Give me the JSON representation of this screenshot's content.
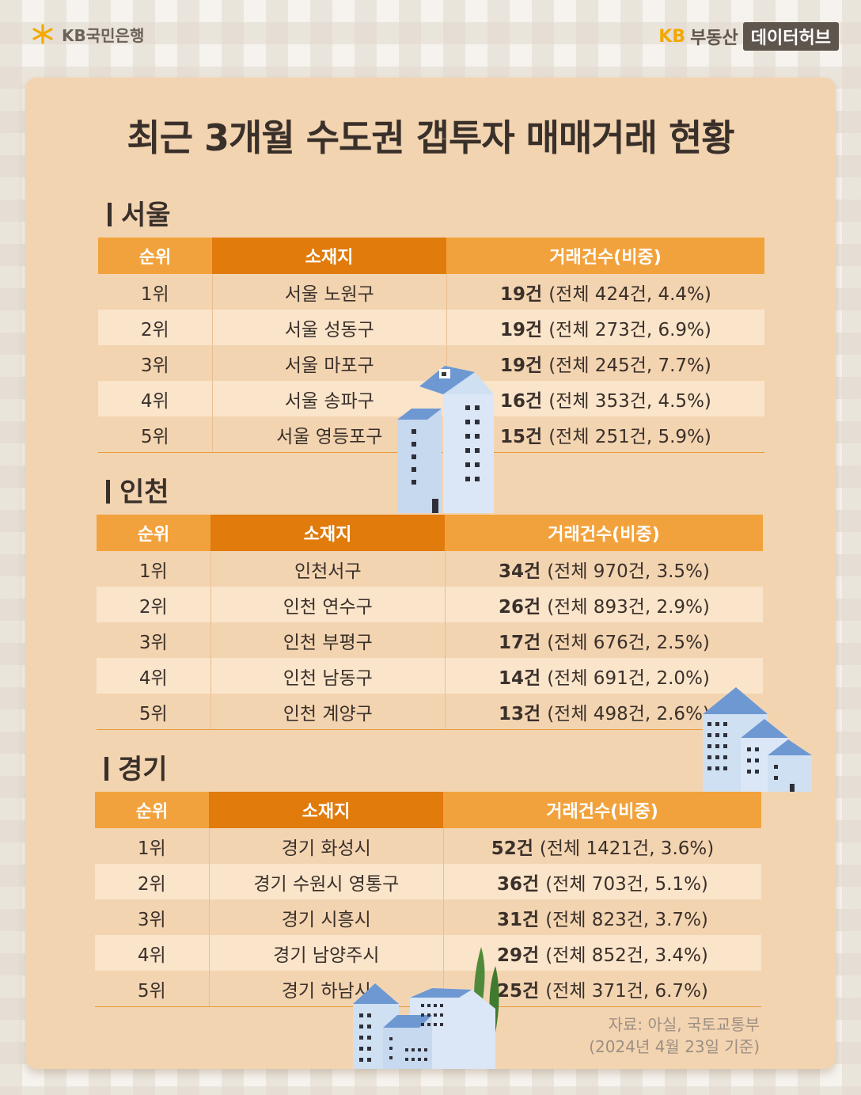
{
  "brand_left": {
    "text": "KB국민은행"
  },
  "brand_right": {
    "kb": "KB",
    "name": "부동산",
    "box": "데이터허브"
  },
  "title": "최근 3개월 수도권 갭투자 매매거래 현황",
  "headers": {
    "rank": "순위",
    "location": "소재지",
    "count": "거래건수(비중)"
  },
  "sections": [
    {
      "label": "서울",
      "rows": [
        {
          "rank": "1위",
          "location": "서울 노원구",
          "count": "19건",
          "detail": "(전체 424건, 4.4%)"
        },
        {
          "rank": "2위",
          "location": "서울 성동구",
          "count": "19건",
          "detail": "(전체 273건, 6.9%)"
        },
        {
          "rank": "3위",
          "location": "서울 마포구",
          "count": "19건",
          "detail": "(전체 245건, 7.7%)"
        },
        {
          "rank": "4위",
          "location": "서울 송파구",
          "count": "16건",
          "detail": "(전체 353건, 4.5%)"
        },
        {
          "rank": "5위",
          "location": "서울 영등포구",
          "count": "15건",
          "detail": "(전체 251건, 5.9%)"
        }
      ]
    },
    {
      "label": "인천",
      "rows": [
        {
          "rank": "1위",
          "location": "인천서구",
          "count": "34건",
          "detail": "(전체 970건, 3.5%)"
        },
        {
          "rank": "2위",
          "location": "인천 연수구",
          "count": "26건",
          "detail": "(전체 893건, 2.9%)"
        },
        {
          "rank": "3위",
          "location": "인천 부평구",
          "count": "17건",
          "detail": "(전체 676건, 2.5%)"
        },
        {
          "rank": "4위",
          "location": "인천 남동구",
          "count": "14건",
          "detail": "(전체 691건, 2.0%)"
        },
        {
          "rank": "5위",
          "location": "인천 계양구",
          "count": "13건",
          "detail": "(전체 498건, 2.6%)"
        }
      ]
    },
    {
      "label": "경기",
      "rows": [
        {
          "rank": "1위",
          "location": "경기 화성시",
          "count": "52건",
          "detail": "(전체 1421건, 3.6%)"
        },
        {
          "rank": "2위",
          "location": "경기 수원시 영통구",
          "count": "36건",
          "detail": "(전체 703건, 5.1%)"
        },
        {
          "rank": "3위",
          "location": "경기 시흥시",
          "count": "31건",
          "detail": "(전체 823건, 3.7%)"
        },
        {
          "rank": "4위",
          "location": "경기 남양주시",
          "count": "29건",
          "detail": "(전체 852건, 3.4%)"
        },
        {
          "rank": "5위",
          "location": "경기 하남시",
          "count": "25건",
          "detail": "(전체 371건, 6.7%)"
        }
      ]
    }
  ],
  "source": {
    "line1": "자료: 아실, 국토교통부",
    "line2": "(2024년 4월 23일 기준)"
  },
  "colors": {
    "card": "#f3d4b1",
    "header_dark": "#e07b0c",
    "header_light": "#f2a23c",
    "row_alt": "#fae4ca",
    "text": "#3a302a"
  }
}
